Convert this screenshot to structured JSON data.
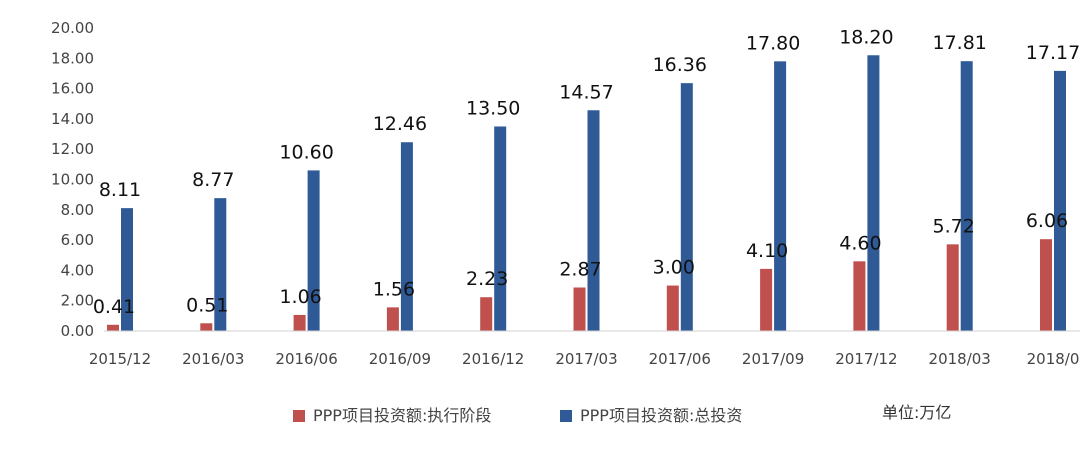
{
  "chart_data": {
    "type": "bar",
    "categories": [
      "2015/12",
      "2016/03",
      "2016/06",
      "2016/09",
      "2016/12",
      "2017/03",
      "2017/06",
      "2017/09",
      "2017/12",
      "2018/03",
      "2018/0"
    ],
    "series": [
      {
        "name": "PPP项目投资额:执行阶段",
        "color": "#c0504d",
        "values": [
          0.41,
          0.51,
          1.06,
          1.56,
          2.23,
          2.87,
          3.0,
          4.1,
          4.6,
          5.72,
          6.06
        ]
      },
      {
        "name": "PPP项目投资额:总投资",
        "color": "#2f5a96",
        "values": [
          8.11,
          8.77,
          10.6,
          12.46,
          13.5,
          14.57,
          16.36,
          17.8,
          18.2,
          17.81,
          17.17
        ]
      }
    ],
    "ylim": [
      0,
      20
    ],
    "yticks": [
      "0.00",
      "2.00",
      "4.00",
      "6.00",
      "8.00",
      "10.00",
      "12.00",
      "14.00",
      "16.00",
      "18.00",
      "20.00"
    ],
    "grid": false,
    "legend_position": "bottom",
    "unit": "单位:万亿"
  }
}
